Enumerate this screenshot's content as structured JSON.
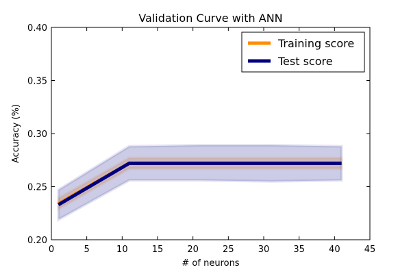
{
  "chart_data": {
    "type": "line",
    "title": "Validation Curve with ANN",
    "xlabel": "# of neurons",
    "ylabel": "Accuracy (%)",
    "xlim": [
      0,
      45
    ],
    "ylim": [
      0.2,
      0.4
    ],
    "x_ticks": [
      {
        "value": 0,
        "label": "0"
      },
      {
        "value": 5,
        "label": "5"
      },
      {
        "value": 10,
        "label": "10"
      },
      {
        "value": 15,
        "label": "15"
      },
      {
        "value": 20,
        "label": "20"
      },
      {
        "value": 25,
        "label": "25"
      },
      {
        "value": 30,
        "label": "30"
      },
      {
        "value": 35,
        "label": "35"
      },
      {
        "value": 40,
        "label": "40"
      },
      {
        "value": 45,
        "label": "45"
      }
    ],
    "y_ticks": [
      {
        "value": 0.2,
        "label": "0.20"
      },
      {
        "value": 0.25,
        "label": "0.25"
      },
      {
        "value": 0.3,
        "label": "0.30"
      },
      {
        "value": 0.35,
        "label": "0.35"
      },
      {
        "value": 0.4,
        "label": "0.40"
      }
    ],
    "grid": false,
    "legend_position": "top-right",
    "series": [
      {
        "name": "Training score",
        "color": "#ff8c00",
        "x": [
          1,
          11,
          21,
          31,
          41
        ],
        "values": [
          0.234,
          0.272,
          0.272,
          0.272,
          0.272
        ],
        "band_lower": [
          0.229,
          0.267,
          0.267,
          0.267,
          0.267
        ],
        "band_upper": [
          0.239,
          0.277,
          0.277,
          0.277,
          0.277
        ]
      },
      {
        "name": "Test score",
        "color": "#000080",
        "x": [
          1,
          11,
          21,
          31,
          41
        ],
        "values": [
          0.233,
          0.272,
          0.272,
          0.272,
          0.272
        ],
        "band_lower": [
          0.219,
          0.256,
          0.256,
          0.255,
          0.256
        ],
        "band_upper": [
          0.247,
          0.288,
          0.289,
          0.289,
          0.288
        ]
      }
    ]
  }
}
